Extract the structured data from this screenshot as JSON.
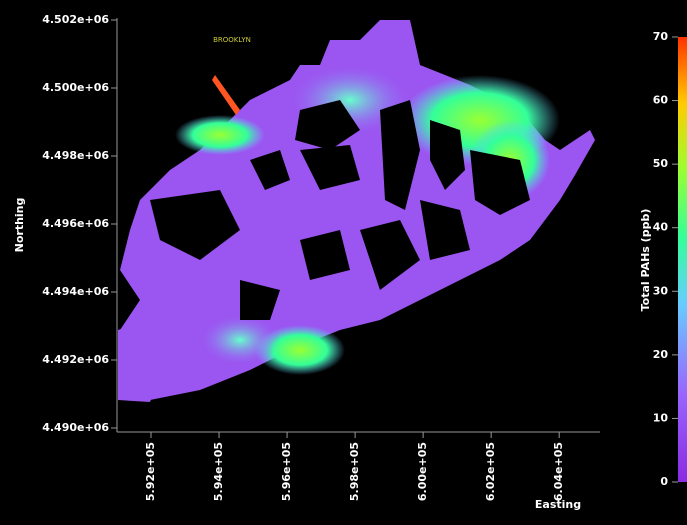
{
  "chart_data": {
    "type": "map",
    "xlabel": "Easting",
    "ylabel": "Northing",
    "colorbar_label": "Total PAHs (ppb)",
    "place_labels": [
      "BROOKLYN"
    ],
    "xlim": [
      591000,
      605200
    ],
    "ylim": [
      4490000,
      4502000
    ],
    "xticks": [
      {
        "value": 592000,
        "label": "5.92e+05"
      },
      {
        "value": 594000,
        "label": "5.94e+05"
      },
      {
        "value": 596000,
        "label": "5.96e+05"
      },
      {
        "value": 598000,
        "label": "5.98e+05"
      },
      {
        "value": 600000,
        "label": "6.00e+05"
      },
      {
        "value": 602000,
        "label": "6.02e+05"
      },
      {
        "value": 604000,
        "label": "6.04e+05"
      }
    ],
    "yticks": [
      {
        "value": 4490000,
        "label": "4.490e+06"
      },
      {
        "value": 4492000,
        "label": "4.492e+06"
      },
      {
        "value": 4494000,
        "label": "4.494e+06"
      },
      {
        "value": 4496000,
        "label": "4.496e+06"
      },
      {
        "value": 4498000,
        "label": "4.498e+06"
      },
      {
        "value": 4500000,
        "label": "4.500e+06"
      },
      {
        "value": 4502000,
        "label": "4.502e+06"
      }
    ],
    "clim": [
      0,
      70
    ],
    "cticks": [
      0,
      10,
      20,
      30,
      40,
      50,
      60,
      70
    ]
  }
}
